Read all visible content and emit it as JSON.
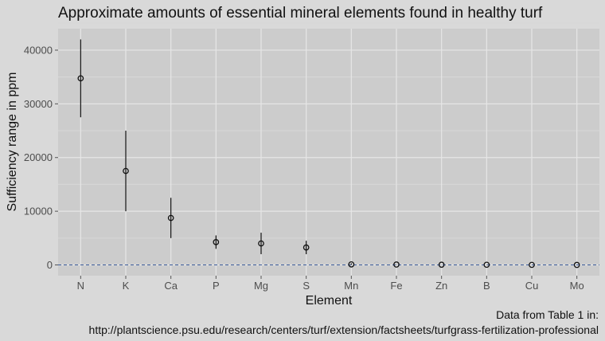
{
  "chart_data": {
    "type": "scatter",
    "title": "Approximate amounts of essential mineral elements found in healthy turf",
    "xlabel": "Element",
    "ylabel": "Sufficiency range in ppm",
    "ylim": [
      -2000,
      44000
    ],
    "yticks": [
      0,
      10000,
      20000,
      30000,
      40000
    ],
    "ytick_labels": [
      "0",
      "10000",
      "20000",
      "30000",
      "40000"
    ],
    "grid": true,
    "reference_line": {
      "y": 0,
      "style": "dashed",
      "color": "#3a5a9a"
    },
    "categories": [
      "N",
      "K",
      "Ca",
      "P",
      "Mg",
      "S",
      "Mn",
      "Fe",
      "Zn",
      "B",
      "Cu",
      "Mo"
    ],
    "points": [
      {
        "x": "N",
        "y": 34750,
        "ymin": 27500,
        "ymax": 42000
      },
      {
        "x": "K",
        "y": 17500,
        "ymin": 10000,
        "ymax": 25000
      },
      {
        "x": "Ca",
        "y": 8750,
        "ymin": 5000,
        "ymax": 12500
      },
      {
        "x": "P",
        "y": 4250,
        "ymin": 3000,
        "ymax": 5500
      },
      {
        "x": "Mg",
        "y": 4000,
        "ymin": 2000,
        "ymax": 6000
      },
      {
        "x": "S",
        "y": 3250,
        "ymin": 2000,
        "ymax": 4500
      },
      {
        "x": "Mn",
        "y": 100,
        "ymin": 20,
        "ymax": 300
      },
      {
        "x": "Fe",
        "y": 75,
        "ymin": 35,
        "ymax": 100
      },
      {
        "x": "Zn",
        "y": 40,
        "ymin": 20,
        "ymax": 55
      },
      {
        "x": "B",
        "y": 30,
        "ymin": 10,
        "ymax": 60
      },
      {
        "x": "Cu",
        "y": 13,
        "ymin": 5,
        "ymax": 20
      },
      {
        "x": "Mo",
        "y": 1,
        "ymin": 0.15,
        "ymax": 2
      }
    ]
  },
  "source": {
    "line1": "Data from Table 1 in:",
    "line2": "http://plantscience.psu.edu/research/centers/turf/extension/factsheets/turfgrass-fertilization-professional"
  },
  "colors": {
    "background": "#d9d9d9",
    "panel": "#cccccc",
    "grid_major": "#e6e6e6",
    "grid_minor": "#d7d7d7",
    "point": "#111111"
  }
}
